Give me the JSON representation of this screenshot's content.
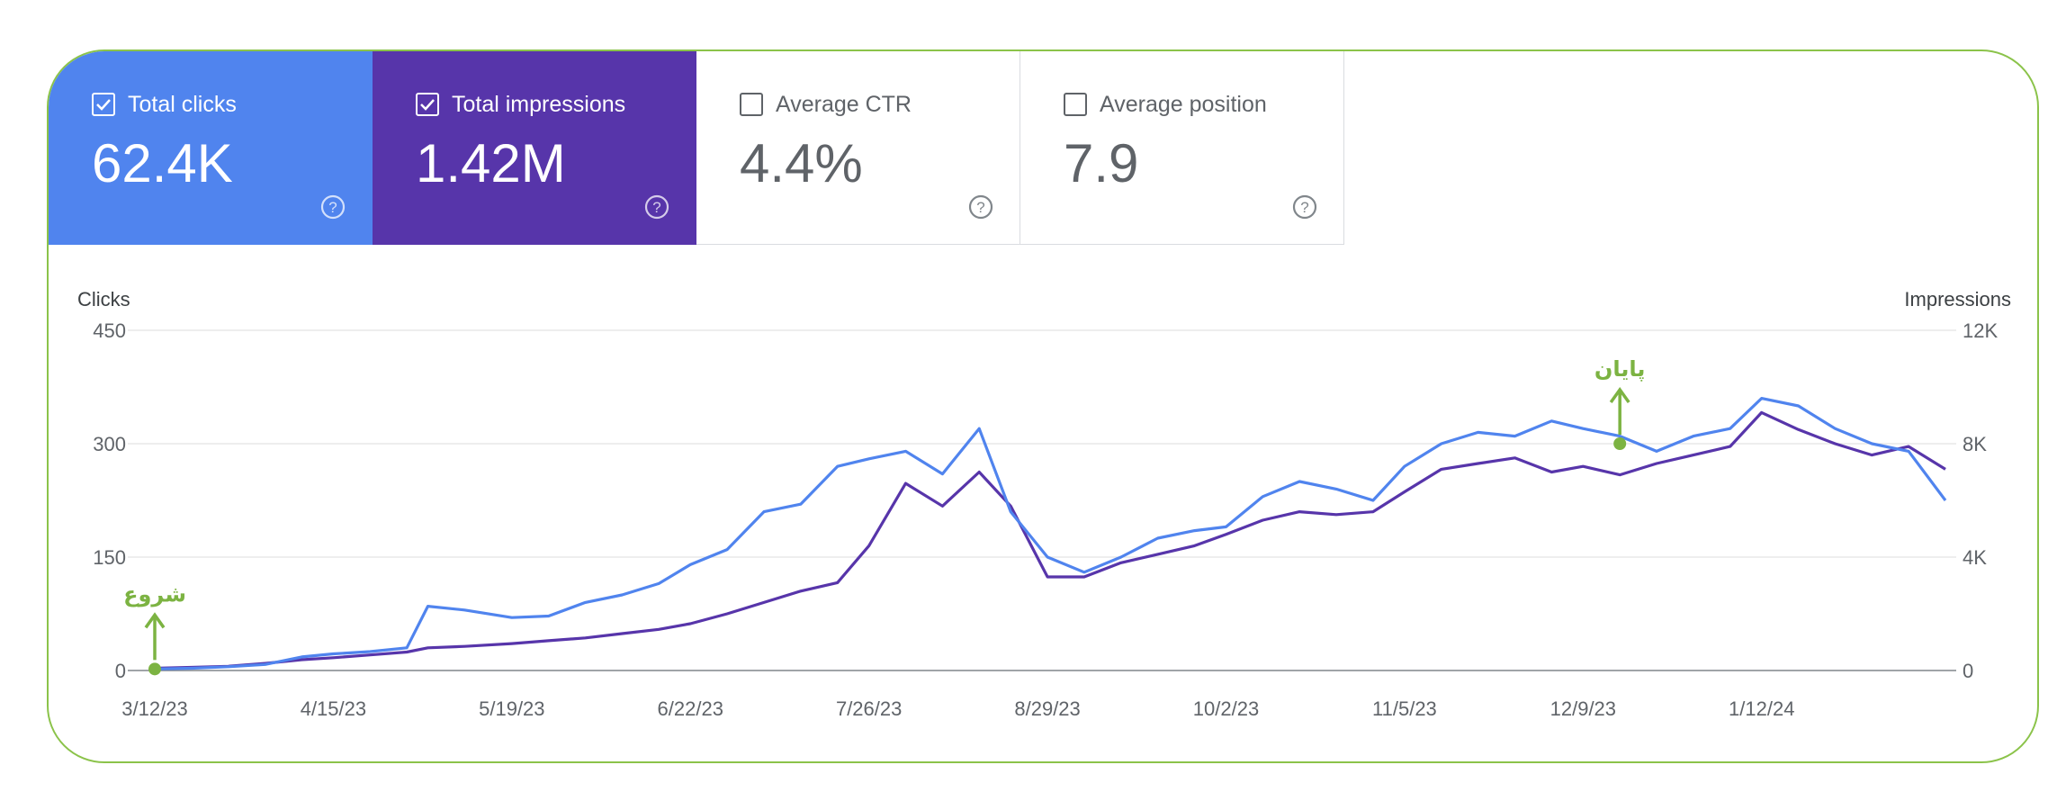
{
  "cards": [
    {
      "id": "clicks",
      "label": "Total clicks",
      "value": "62.4K",
      "checked": true,
      "color": "#5084ee"
    },
    {
      "id": "impressions",
      "label": "Total impressions",
      "value": "1.42M",
      "checked": true,
      "color": "#5735aa"
    },
    {
      "id": "ctr",
      "label": "Average CTR",
      "value": "4.4%",
      "checked": false
    },
    {
      "id": "position",
      "label": "Average position",
      "value": "7.9",
      "checked": false
    }
  ],
  "colors": {
    "clicks": "#5084ee",
    "impressions": "#5735aa",
    "frame": "#8bc34a",
    "annotation": "#7cb342"
  },
  "chart_data": {
    "type": "line",
    "left_axis_title": "Clicks",
    "right_axis_title": "Impressions",
    "left_ylim": [
      0,
      450
    ],
    "right_ylim": [
      0,
      12000
    ],
    "left_ticks": [
      "450",
      "300",
      "150",
      "0"
    ],
    "right_ticks": [
      "12K",
      "8K",
      "4K",
      "0"
    ],
    "x_ticks": [
      "3/12/23",
      "4/15/23",
      "5/19/23",
      "6/22/23",
      "7/26/23",
      "8/29/23",
      "10/2/23",
      "11/5/23",
      "12/9/23",
      "1/12/24"
    ],
    "grid": true,
    "series": [
      {
        "name": "Clicks",
        "axis": "left",
        "color": "#5084ee",
        "points": [
          [
            "3/12/23",
            2
          ],
          [
            "3/19/23",
            3
          ],
          [
            "3/26/23",
            5
          ],
          [
            "4/2/23",
            8
          ],
          [
            "4/9/23",
            18
          ],
          [
            "4/15/23",
            22
          ],
          [
            "4/22/23",
            25
          ],
          [
            "4/29/23",
            30
          ],
          [
            "5/3/23",
            85
          ],
          [
            "5/10/23",
            80
          ],
          [
            "5/19/23",
            70
          ],
          [
            "5/26/23",
            72
          ],
          [
            "6/2/23",
            90
          ],
          [
            "6/9/23",
            100
          ],
          [
            "6/16/23",
            115
          ],
          [
            "6/22/23",
            140
          ],
          [
            "6/29/23",
            160
          ],
          [
            "7/6/23",
            210
          ],
          [
            "7/13/23",
            220
          ],
          [
            "7/20/23",
            270
          ],
          [
            "7/26/23",
            280
          ],
          [
            "8/2/23",
            290
          ],
          [
            "8/9/23",
            260
          ],
          [
            "8/16/23",
            320
          ],
          [
            "8/22/23",
            210
          ],
          [
            "8/29/23",
            150
          ],
          [
            "9/5/23",
            130
          ],
          [
            "9/12/23",
            150
          ],
          [
            "9/19/23",
            175
          ],
          [
            "9/26/23",
            185
          ],
          [
            "10/2/23",
            190
          ],
          [
            "10/9/23",
            230
          ],
          [
            "10/16/23",
            250
          ],
          [
            "10/23/23",
            240
          ],
          [
            "10/30/23",
            225
          ],
          [
            "11/5/23",
            270
          ],
          [
            "11/12/23",
            300
          ],
          [
            "11/19/23",
            315
          ],
          [
            "11/26/23",
            310
          ],
          [
            "12/3/23",
            330
          ],
          [
            "12/9/23",
            320
          ],
          [
            "12/16/23",
            310
          ],
          [
            "12/23/23",
            290
          ],
          [
            "12/30/23",
            310
          ],
          [
            "1/6/24",
            320
          ],
          [
            "1/12/24",
            360
          ],
          [
            "1/19/24",
            350
          ],
          [
            "1/26/24",
            320
          ],
          [
            "2/2/24",
            300
          ],
          [
            "2/9/24",
            290
          ],
          [
            "2/16/24",
            225
          ]
        ]
      },
      {
        "name": "Impressions",
        "axis": "right",
        "color": "#5735aa",
        "points": [
          [
            "3/12/23",
            80
          ],
          [
            "3/19/23",
            110
          ],
          [
            "3/26/23",
            150
          ],
          [
            "4/2/23",
            250
          ],
          [
            "4/9/23",
            380
          ],
          [
            "4/15/23",
            450
          ],
          [
            "4/22/23",
            550
          ],
          [
            "4/29/23",
            650
          ],
          [
            "5/3/23",
            800
          ],
          [
            "5/10/23",
            850
          ],
          [
            "5/19/23",
            950
          ],
          [
            "5/26/23",
            1050
          ],
          [
            "6/2/23",
            1150
          ],
          [
            "6/9/23",
            1300
          ],
          [
            "6/16/23",
            1450
          ],
          [
            "6/22/23",
            1650
          ],
          [
            "6/29/23",
            2000
          ],
          [
            "7/6/23",
            2400
          ],
          [
            "7/13/23",
            2800
          ],
          [
            "7/20/23",
            3100
          ],
          [
            "7/26/23",
            4400
          ],
          [
            "8/2/23",
            6600
          ],
          [
            "8/9/23",
            5800
          ],
          [
            "8/16/23",
            7000
          ],
          [
            "8/22/23",
            5800
          ],
          [
            "8/29/23",
            3300
          ],
          [
            "9/5/23",
            3300
          ],
          [
            "9/12/23",
            3800
          ],
          [
            "9/19/23",
            4100
          ],
          [
            "9/26/23",
            4400
          ],
          [
            "10/2/23",
            4800
          ],
          [
            "10/9/23",
            5300
          ],
          [
            "10/16/23",
            5600
          ],
          [
            "10/23/23",
            5500
          ],
          [
            "10/30/23",
            5600
          ],
          [
            "11/5/23",
            6300
          ],
          [
            "11/12/23",
            7100
          ],
          [
            "11/19/23",
            7300
          ],
          [
            "11/26/23",
            7500
          ],
          [
            "12/3/23",
            7000
          ],
          [
            "12/9/23",
            7200
          ],
          [
            "12/16/23",
            6900
          ],
          [
            "12/23/23",
            7300
          ],
          [
            "12/30/23",
            7600
          ],
          [
            "1/6/24",
            7900
          ],
          [
            "1/12/24",
            9100
          ],
          [
            "1/19/24",
            8500
          ],
          [
            "1/26/24",
            8000
          ],
          [
            "2/2/24",
            7600
          ],
          [
            "2/9/24",
            7900
          ],
          [
            "2/16/24",
            7100
          ]
        ]
      }
    ],
    "annotations": [
      {
        "text": "شروع",
        "x": "3/12/23",
        "y": 2,
        "axis": "left"
      },
      {
        "text": "پایان",
        "x": "12/16/23",
        "y": 300,
        "axis": "left"
      }
    ]
  }
}
